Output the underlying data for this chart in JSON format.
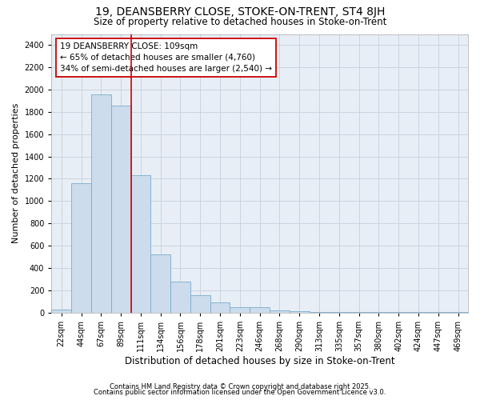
{
  "title1": "19, DEANSBERRY CLOSE, STOKE-ON-TRENT, ST4 8JH",
  "title2": "Size of property relative to detached houses in Stoke-on-Trent",
  "xlabel": "Distribution of detached houses by size in Stoke-on-Trent",
  "ylabel": "Number of detached properties",
  "footnote1": "Contains HM Land Registry data © Crown copyright and database right 2025.",
  "footnote2": "Contains public sector information licensed under the Open Government Licence v3.0.",
  "bar_labels": [
    "22sqm",
    "44sqm",
    "67sqm",
    "89sqm",
    "111sqm",
    "134sqm",
    "156sqm",
    "178sqm",
    "201sqm",
    "223sqm",
    "246sqm",
    "268sqm",
    "290sqm",
    "313sqm",
    "335sqm",
    "357sqm",
    "380sqm",
    "402sqm",
    "424sqm",
    "447sqm",
    "469sqm"
  ],
  "bar_values": [
    25,
    1160,
    1960,
    1860,
    1230,
    520,
    275,
    155,
    90,
    45,
    45,
    20,
    10,
    5,
    5,
    3,
    2,
    2,
    2,
    1,
    1
  ],
  "bar_color": "#ccdcec",
  "bar_edge_color": "#7aabcc",
  "grid_color": "#c8d4e0",
  "bg_color": "#ffffff",
  "plot_bg_color": "#e8eef5",
  "vline_x_index": 4,
  "vline_color": "#cc0000",
  "annotation_line1": "19 DEANSBERRY CLOSE: 109sqm",
  "annotation_line2": "← 65% of detached houses are smaller (4,760)",
  "annotation_line3": "34% of semi-detached houses are larger (2,540) →",
  "annotation_box_color": "#ffffff",
  "annotation_box_edge_color": "#cc0000",
  "ylim": [
    0,
    2500
  ],
  "yticks": [
    0,
    200,
    400,
    600,
    800,
    1000,
    1200,
    1400,
    1600,
    1800,
    2000,
    2200,
    2400
  ],
  "title1_fontsize": 10,
  "title2_fontsize": 8.5,
  "ylabel_fontsize": 8,
  "xlabel_fontsize": 8.5,
  "tick_fontsize": 7,
  "annotation_fontsize": 7.5,
  "footnote_fontsize": 6
}
